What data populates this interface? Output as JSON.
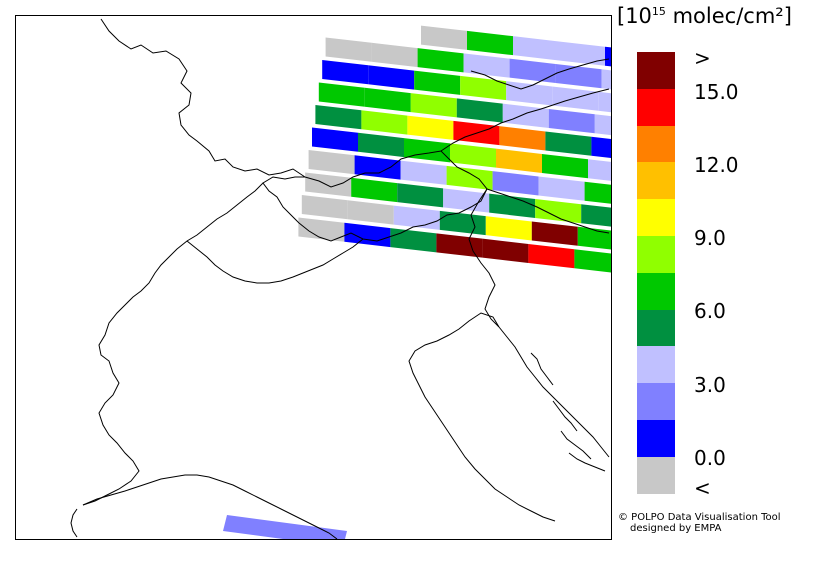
{
  "legend": {
    "title_prefix": "[10",
    "title_exponent": "15",
    "title_suffix": " molec/cm²]",
    "colors": [
      "#c8c8c8",
      "#0000ff",
      "#8080ff",
      "#c0c0ff",
      "#009040",
      "#00c800",
      "#90ff00",
      "#ffff00",
      "#ffc000",
      "#ff8000",
      "#ff0000",
      "#800000"
    ],
    "labels": [
      ">",
      "15.0",
      "12.0",
      "9.0",
      "6.0",
      "3.0",
      "0.0",
      "<"
    ]
  },
  "credit": {
    "line1": "© POLPO Data Visualisation Tool",
    "line2": "designed by EMPA"
  },
  "swath_rows": [
    [
      "#ffffff",
      "#ffffff",
      "#c8c8c8",
      "#00c800",
      "#c0c0ff",
      "#c0c0ff",
      "#0000ff",
      "#0000ff"
    ],
    [
      "#c8c8c8",
      "#c8c8c8",
      "#00c800",
      "#c0c0ff",
      "#8080ff",
      "#8080ff",
      "#c0c0ff",
      "#009040"
    ],
    [
      "#0000ff",
      "#0000ff",
      "#00c800",
      "#90ff00",
      "#c0c0ff",
      "#c0c0ff",
      "#c0c0ff",
      "#c0c0ff"
    ],
    [
      "#00c800",
      "#00c800",
      "#90ff00",
      "#009040",
      "#c0c0ff",
      "#8080ff",
      "#c0c0ff",
      "#c0c0ff"
    ],
    [
      "#009040",
      "#90ff00",
      "#ffff00",
      "#ff0000",
      "#ff8000",
      "#009040",
      "#0000ff",
      "#0000ff"
    ],
    [
      "#0000ff",
      "#009040",
      "#00c800",
      "#90ff00",
      "#ffc000",
      "#00c800",
      "#c0c0ff",
      "#c0c0ff"
    ],
    [
      "#c8c8c8",
      "#0000ff",
      "#c0c0ff",
      "#90ff00",
      "#8080ff",
      "#c0c0ff",
      "#00c800",
      "#c0c0ff"
    ],
    [
      "#c8c8c8",
      "#00c800",
      "#009040",
      "#c0c0ff",
      "#009040",
      "#90ff00",
      "#009040",
      "#c0c0ff"
    ],
    [
      "#c8c8c8",
      "#c8c8c8",
      "#c0c0ff",
      "#009040",
      "#ffff00",
      "#800000",
      "#00c800",
      "#009040"
    ],
    [
      "#c8c8c8",
      "#0000ff",
      "#009040",
      "#800000",
      "#800000",
      "#ff0000",
      "#00c800",
      "#00c800"
    ]
  ],
  "bottom_strip_color": "#8080ff"
}
